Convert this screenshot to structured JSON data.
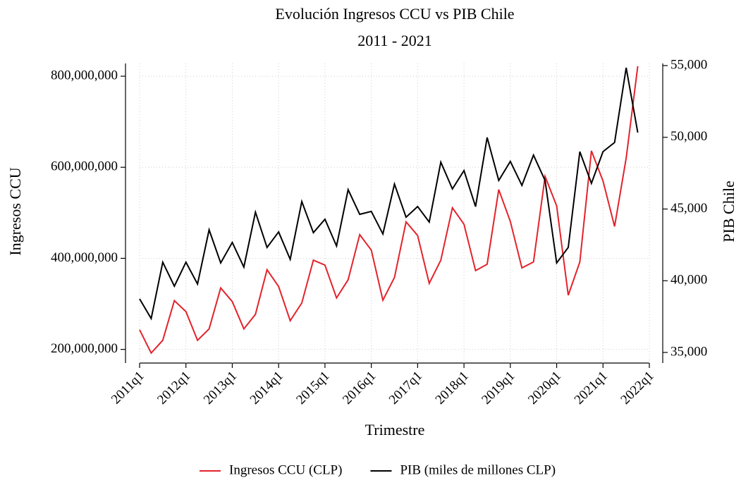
{
  "chart_data": {
    "type": "line",
    "title": "Evolución Ingresos CCU vs PIB Chile",
    "subtitle": "2011 - 2021",
    "x_label": "Trimestre",
    "y_label": "Ingresos CCU",
    "y2_label": "PIB Chile",
    "categories": [
      "2011q1",
      null,
      null,
      null,
      "2012q1",
      null,
      null,
      null,
      "2013q1",
      null,
      null,
      null,
      "2014q1",
      null,
      null,
      null,
      "2015q1",
      null,
      null,
      null,
      "2016q1",
      null,
      null,
      null,
      "2017q1",
      null,
      null,
      null,
      "2018q1",
      null,
      null,
      null,
      "2019q1",
      null,
      null,
      null,
      "2020q1",
      null,
      null,
      null,
      "2021q1",
      null,
      null,
      null,
      "2022q1"
    ],
    "ylim": [
      170000000,
      828000000
    ],
    "yticks": [
      {
        "value": 200000000,
        "label": "200,000,000"
      },
      {
        "value": 400000000,
        "label": "400,000,000"
      },
      {
        "value": 600000000,
        "label": "600,000,000"
      },
      {
        "value": 800000000,
        "label": "800,000,000"
      }
    ],
    "y2lim": [
      34260,
      55150
    ],
    "y2ticks": [
      {
        "value": 35000,
        "label": "35,000"
      },
      {
        "value": 40000,
        "label": "40,000"
      },
      {
        "value": 45000,
        "label": "45,000"
      },
      {
        "value": 50000,
        "label": "50,000"
      },
      {
        "value": 55000,
        "label": "55,000"
      }
    ],
    "grid": true,
    "legend": "bottom",
    "series": [
      {
        "name": "Ingresos CCU (CLP)",
        "color": "#e3232b",
        "values": [
          243000000,
          192000000,
          220000000,
          307000000,
          283000000,
          220000000,
          245000000,
          335000000,
          305000000,
          245000000,
          277000000,
          375000000,
          338000000,
          263000000,
          302000000,
          396000000,
          385000000,
          313000000,
          353000000,
          452000000,
          418000000,
          308000000,
          358000000,
          480000000,
          450000000,
          345000000,
          396000000,
          511000000,
          475000000,
          373000000,
          387000000,
          551000000,
          481000000,
          379000000,
          392000000,
          580000000,
          515000000,
          319000000,
          392000000,
          636000000,
          570000000,
          470000000,
          620000000,
          822000000,
          null
        ]
      },
      {
        "name": "PIB (miles de millones CLP)",
        "color": "#000000",
        "axis": "y2",
        "values": [
          38735,
          37360,
          41290,
          39620,
          41290,
          39770,
          43550,
          41240,
          42670,
          40950,
          44780,
          42320,
          43400,
          41490,
          45520,
          43350,
          44290,
          42420,
          46350,
          44630,
          44830,
          43260,
          46740,
          44430,
          45170,
          44090,
          48270,
          46400,
          47680,
          45170,
          49990,
          46990,
          48320,
          46650,
          48760,
          46990,
          41240,
          42320,
          49000,
          46790,
          49000,
          49640,
          54850,
          50330,
          null
        ]
      }
    ]
  }
}
